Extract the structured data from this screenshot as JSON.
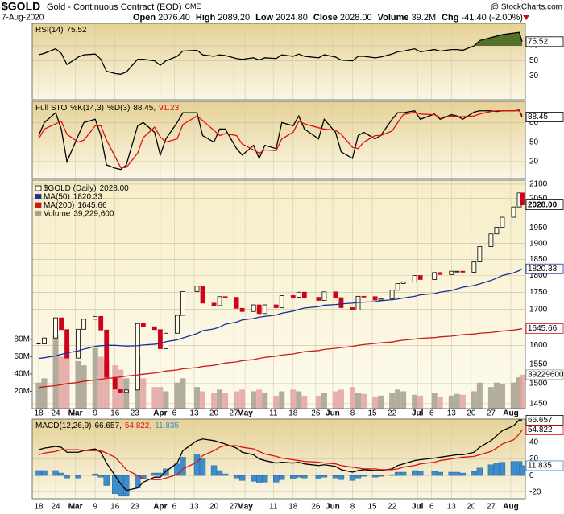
{
  "header": {
    "symbol": "$GOLD",
    "name": "Gold - Continuous Contract (EOD)",
    "exchange": "CME",
    "source": "@ StockCharts.com",
    "date": "7-Aug-2020",
    "fields": [
      {
        "label": "Open",
        "value": "2076.40"
      },
      {
        "label": "High",
        "value": "2089.20"
      },
      {
        "label": "Low",
        "value": "2024.80"
      },
      {
        "label": "Close",
        "value": "2028.00"
      },
      {
        "label": "Volume",
        "value": "39.2M"
      },
      {
        "label": "Chg",
        "value": "-41.40 (-2.00%)"
      }
    ]
  },
  "chart_data": [
    {
      "type": "candlestick",
      "log": true,
      "ylim": [
        1438,
        2114
      ],
      "y2lim": [
        0,
        264000000
      ],
      "grid": true,
      "x": [
        "2020-02-18",
        "2020-02-20",
        "2020-02-24",
        "2020-02-26",
        "2020-02-28",
        "2020-03-03",
        "2020-03-05",
        "2020-03-09",
        "2020-03-11",
        "2020-03-13",
        "2020-03-16",
        "2020-03-18",
        "2020-03-20",
        "2020-03-24",
        "2020-03-26",
        "2020-03-30",
        "2020-04-01",
        "2020-04-03",
        "2020-04-07",
        "2020-04-09",
        "2020-04-14",
        "2020-04-16",
        "2020-04-20",
        "2020-04-22",
        "2020-04-24",
        "2020-04-28",
        "2020-04-30",
        "2020-05-04",
        "2020-05-06",
        "2020-05-08",
        "2020-05-12",
        "2020-05-14",
        "2020-05-18",
        "2020-05-20",
        "2020-05-22",
        "2020-05-27",
        "2020-05-29",
        "2020-06-02",
        "2020-06-04",
        "2020-06-08",
        "2020-06-10",
        "2020-06-12",
        "2020-06-16",
        "2020-06-18",
        "2020-06-22",
        "2020-06-24",
        "2020-06-26",
        "2020-06-30",
        "2020-07-02",
        "2020-07-07",
        "2020-07-09",
        "2020-07-13",
        "2020-07-15",
        "2020-07-17",
        "2020-07-21",
        "2020-07-23",
        "2020-07-27",
        "2020-07-29",
        "2020-07-31",
        "2020-08-04",
        "2020-08-06",
        "2020-08-07"
      ],
      "xticks": [
        {
          "value": "2020-02-18",
          "label": "18"
        },
        {
          "value": "2020-02-24",
          "label": "24"
        },
        {
          "value": "2020-03-02",
          "label": "Mar"
        },
        {
          "value": "2020-03-09",
          "label": "9"
        },
        {
          "value": "2020-03-16",
          "label": "16"
        },
        {
          "value": "2020-03-23",
          "label": "23"
        },
        {
          "value": "2020-04-01",
          "label": "Apr"
        },
        {
          "value": "2020-04-06",
          "label": "6"
        },
        {
          "value": "2020-04-13",
          "label": "13"
        },
        {
          "value": "2020-04-20",
          "label": "20"
        },
        {
          "value": "2020-04-27",
          "label": "27"
        },
        {
          "value": "2020-05-01",
          "label": "May"
        },
        {
          "value": "2020-05-11",
          "label": "11"
        },
        {
          "value": "2020-05-18",
          "label": "18"
        },
        {
          "value": "2020-05-26",
          "label": "26"
        },
        {
          "value": "2020-06-01",
          "label": "Jun"
        },
        {
          "value": "2020-06-08",
          "label": "8"
        },
        {
          "value": "2020-06-15",
          "label": "15"
        },
        {
          "value": "2020-06-22",
          "label": "22"
        },
        {
          "value": "2020-07-01",
          "label": "Jul"
        },
        {
          "value": "2020-07-06",
          "label": "6"
        },
        {
          "value": "2020-07-13",
          "label": "13"
        },
        {
          "value": "2020-07-20",
          "label": "20"
        },
        {
          "value": "2020-07-27",
          "label": "27"
        },
        {
          "value": "2020-08-03",
          "label": "Aug"
        }
      ],
      "yticks": [
        1450,
        1500,
        1550,
        1600,
        1700,
        1750,
        1800,
        1850,
        1900,
        1950,
        2050,
        2100
      ],
      "y2ticks": [
        {
          "value": 20000000,
          "label": "20M"
        },
        {
          "value": 40000000,
          "label": "40M"
        },
        {
          "value": 60000000,
          "label": "60M"
        },
        {
          "value": 80000000,
          "label": "80M"
        }
      ],
      "series": [
        {
          "name": "$GOLD (Daily)",
          "type": "candlestick",
          "color": "#000000",
          "down_color": "#d0021b",
          "last_label": "2028.00",
          "tag": true,
          "values": [
            1604,
            1620,
            1676,
            1643,
            1566,
            1644,
            1672,
            1680,
            1642,
            1516,
            1486,
            1478,
            1484,
            1660,
            1651,
            1643,
            1591,
            1633,
            1683,
            1752,
            1768,
            1718,
            1711,
            1737,
            1735,
            1703,
            1694,
            1713,
            1688,
            1713,
            1705,
            1740,
            1735,
            1750,
            1735,
            1726,
            1751,
            1734,
            1705,
            1698,
            1738,
            1737,
            1727,
            1731,
            1756,
            1776,
            1781,
            1800,
            1788,
            1809,
            1803,
            1813,
            1813,
            1810,
            1842,
            1890,
            1931,
            1953,
            1986,
            2021,
            2069,
            2028
          ]
        },
        {
          "name": "MA(50)",
          "type": "line",
          "color": "#1a2f9c",
          "tag": true,
          "values": [
            1565,
            1567,
            1572,
            1576,
            1580,
            1585,
            1590,
            1597,
            1599,
            1600,
            1600,
            1599,
            1598,
            1599,
            1601,
            1603,
            1605,
            1610,
            1615,
            1620,
            1632,
            1640,
            1645,
            1650,
            1658,
            1664,
            1670,
            1674,
            1678,
            1680,
            1684,
            1689,
            1695,
            1700,
            1704,
            1708,
            1712,
            1714,
            1716,
            1718,
            1720,
            1721,
            1722,
            1725,
            1728,
            1730,
            1733,
            1738,
            1742,
            1746,
            1750,
            1755,
            1760,
            1765,
            1770,
            1775,
            1785,
            1792,
            1800,
            1808,
            1815,
            1820.33
          ]
        },
        {
          "name": "MA(200)",
          "type": "line",
          "color": "#cc1a1a",
          "tag": true,
          "values": [
            1490,
            1492,
            1495,
            1497,
            1500,
            1503,
            1506,
            1509,
            1511,
            1513,
            1515,
            1517,
            1519,
            1522,
            1524,
            1527,
            1529,
            1532,
            1535,
            1538,
            1541,
            1544,
            1547,
            1550,
            1553,
            1556,
            1559,
            1562,
            1565,
            1568,
            1571,
            1574,
            1577,
            1580,
            1583,
            1586,
            1589,
            1592,
            1594,
            1597,
            1600,
            1602,
            1605,
            1607,
            1609,
            1612,
            1614,
            1617,
            1619,
            1621,
            1623,
            1625,
            1627,
            1629,
            1631,
            1633,
            1635,
            1637,
            1639,
            1642,
            1644,
            1645.66
          ]
        },
        {
          "name": "Volume",
          "type": "bar",
          "axis": "y2",
          "color": "#a59f8e",
          "down_color": "#e2a3a0",
          "legend_label": "39,229,600",
          "tag": true,
          "values": [
            30000000,
            35000000,
            85000000,
            60000000,
            75000000,
            55000000,
            50000000,
            70000000,
            60000000,
            55000000,
            50000000,
            45000000,
            35000000,
            60000000,
            35000000,
            25000000,
            25000000,
            20000000,
            30000000,
            35000000,
            25000000,
            20000000,
            18000000,
            22000000,
            18000000,
            20000000,
            22000000,
            20000000,
            22000000,
            18000000,
            15000000,
            20000000,
            22000000,
            20000000,
            15000000,
            15000000,
            18000000,
            20000000,
            22000000,
            25000000,
            18000000,
            17000000,
            14000000,
            15000000,
            18000000,
            22000000,
            20000000,
            16000000,
            15000000,
            18000000,
            14000000,
            15000000,
            17000000,
            16000000,
            20000000,
            30000000,
            25000000,
            30000000,
            28000000,
            30000000,
            36000000,
            39229600
          ]
        }
      ]
    },
    {
      "type": "line",
      "ylim": [
        -2,
        100
      ],
      "yticks": [
        30,
        50,
        70
      ],
      "grid": true,
      "series": [
        {
          "name": "RSI(14)",
          "color": "#000000",
          "fill_above": 70,
          "fill_color": "#56702a",
          "tag": true,
          "values": [
            58,
            60,
            66,
            60,
            45,
            55,
            58,
            59,
            52,
            36,
            33,
            32,
            35,
            52,
            52,
            50,
            44,
            50,
            56,
            63,
            64,
            58,
            56,
            58,
            57,
            53,
            52,
            54,
            51,
            54,
            53,
            58,
            56,
            59,
            56,
            54,
            58,
            55,
            51,
            50,
            56,
            56,
            54,
            55,
            59,
            62,
            63,
            66,
            62,
            65,
            63,
            65,
            65,
            64,
            70,
            77,
            81,
            83,
            85,
            87,
            88,
            75.52
          ]
        }
      ]
    },
    {
      "type": "line",
      "title": "Full STO",
      "separator": ",",
      "ylim": [
        -6,
        112.5
      ],
      "yticks": [
        20,
        50,
        80
      ],
      "grid": true,
      "series": [
        {
          "name": "%K(14,3)",
          "color": "#000000",
          "tag": true,
          "values": [
            60,
            80,
            95,
            70,
            20,
            60,
            80,
            85,
            60,
            15,
            10,
            8,
            15,
            75,
            80,
            65,
            30,
            55,
            80,
            95,
            95,
            60,
            50,
            70,
            70,
            40,
            30,
            45,
            25,
            45,
            40,
            80,
            75,
            90,
            70,
            55,
            85,
            65,
            35,
            25,
            60,
            65,
            55,
            60,
            85,
            95,
            95,
            98,
            85,
            93,
            85,
            92,
            90,
            85,
            96,
            98,
            98,
            97,
            98,
            98,
            99,
            88.45
          ]
        },
        {
          "name": "%D(3)",
          "color": "#e01010",
          "values": [
            55,
            70,
            78,
            82,
            62,
            50,
            53,
            75,
            75,
            53,
            28,
            11,
            11,
            33,
            57,
            73,
            58,
            50,
            55,
            77,
            90,
            83,
            68,
            60,
            63,
            60,
            47,
            38,
            33,
            38,
            37,
            55,
            65,
            82,
            78,
            72,
            70,
            68,
            62,
            42,
            40,
            50,
            60,
            60,
            67,
            80,
            92,
            96,
            93,
            92,
            88,
            90,
            89,
            89,
            90,
            93,
            97,
            98,
            98,
            98,
            98,
            91.23
          ]
        }
      ]
    },
    {
      "type": "line",
      "title": "MACD(12,26,9)",
      "separator": ",",
      "ylim": [
        -28,
        68
      ],
      "yticks": [
        -20,
        0,
        20,
        40
      ],
      "grid": true,
      "series": [
        {
          "color": "#000000",
          "tag": true,
          "values": [
            31,
            33,
            35,
            34,
            28,
            28,
            30,
            32,
            28,
            15,
            0,
            -10,
            -18,
            -15,
            -8,
            -2,
            -2,
            5,
            15,
            30,
            42,
            44,
            42,
            40,
            38,
            33,
            28,
            25,
            20,
            18,
            15,
            16,
            15,
            16,
            14,
            12,
            13,
            11,
            7,
            4,
            6,
            7,
            6,
            6,
            8,
            12,
            14,
            18,
            19,
            21,
            22,
            24,
            25,
            25,
            28,
            34,
            42,
            48,
            54,
            60,
            67,
            66.657
          ]
        },
        {
          "color": "#e01010",
          "tag": true,
          "values": [
            25,
            27,
            29,
            31,
            31,
            31,
            30,
            30,
            30,
            27,
            22,
            15,
            7,
            0,
            -4,
            -5,
            -5,
            -3,
            1,
            8,
            16,
            24,
            30,
            34,
            36,
            36,
            34,
            32,
            29,
            26,
            23,
            21,
            19,
            18,
            17,
            16,
            15,
            14,
            12,
            10,
            9,
            8,
            8,
            7,
            7,
            8,
            10,
            12,
            14,
            16,
            18,
            20,
            21,
            22,
            23,
            25,
            29,
            33,
            38,
            43,
            50,
            54.822
          ]
        },
        {
          "type": "histogram",
          "color": "#3d8ccc",
          "tag": true,
          "values": [
            6,
            6,
            6,
            3,
            -3,
            -3,
            0,
            2,
            -2,
            -12,
            -22,
            -25,
            -25,
            -15,
            -4,
            3,
            3,
            8,
            14,
            22,
            26,
            20,
            12,
            6,
            2,
            -3,
            -6,
            -7,
            -9,
            -8,
            -8,
            -5,
            -4,
            -2,
            -3,
            -4,
            -2,
            -3,
            -5,
            -6,
            -3,
            -1,
            -2,
            -1,
            1,
            4,
            4,
            6,
            5,
            5,
            4,
            4,
            4,
            3,
            5,
            9,
            13,
            15,
            16,
            17,
            17,
            11.835
          ]
        }
      ]
    }
  ]
}
